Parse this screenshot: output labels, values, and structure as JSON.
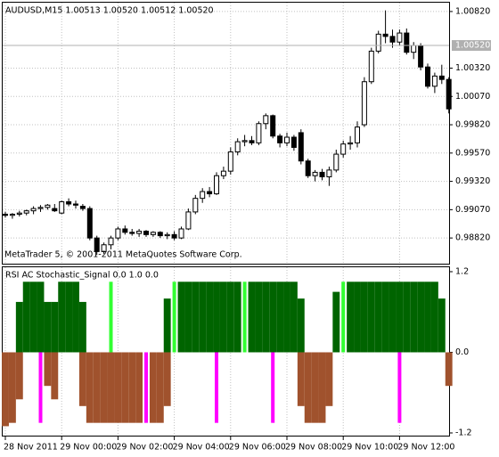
{
  "chart_data": [
    {
      "type": "candlestick",
      "title": "AUDUSD,M15 1.00513 1.00520 1.00512 1.00520",
      "ylim": [
        0.98593,
        1.00898
      ],
      "yticks": [
        {
          "value": 1.0082,
          "label": "1.00820"
        },
        {
          "value": 1.0032,
          "label": "1.00320"
        },
        {
          "value": 1.0007,
          "label": "1.00070"
        },
        {
          "value": 0.9982,
          "label": "0.99820"
        },
        {
          "value": 0.9957,
          "label": "0.99570"
        },
        {
          "value": 0.9932,
          "label": "0.99320"
        },
        {
          "value": 0.9907,
          "label": "0.99070"
        },
        {
          "value": 0.9882,
          "label": "0.98820"
        }
      ],
      "last_price": {
        "value": 1.0052,
        "label": "1.00520"
      },
      "footer": "MetaTrader 5, © 2001-2011 MetaQuotes Software Corp.",
      "up_color": "#ffffff",
      "down_color": "#000000",
      "grid": true,
      "open": [
        0.9903,
        0.9902,
        0.9903,
        0.9904,
        0.9906,
        0.9908,
        0.9909,
        0.9908,
        0.9904,
        0.9914,
        0.9912,
        0.991,
        0.9908,
        0.9882,
        0.987,
        0.9876,
        0.9882,
        0.989,
        0.9887,
        0.9886,
        0.9888,
        0.9885,
        0.9887,
        0.9884,
        0.9885,
        0.9882,
        0.989,
        0.9905,
        0.9917,
        0.9923,
        0.9921,
        0.9937,
        0.9941,
        0.9958,
        0.9967,
        0.9968,
        0.9966,
        0.9983,
        0.999,
        0.9972,
        0.9966,
        0.9971,
        0.9975,
        0.995,
        0.9937,
        0.994,
        0.9936,
        0.9942,
        0.9956,
        0.9965,
        0.9966,
        0.9982,
        1.002,
        1.0047,
        1.0062,
        1.006,
        1.0055,
        1.0063,
        1.0046,
        1.0052,
        1.0033,
        1.0016,
        1.0025,
        1.0022
      ],
      "high": [
        0.9905,
        0.9904,
        0.9906,
        0.9907,
        0.991,
        0.9911,
        0.9912,
        0.9912,
        0.9915,
        0.9917,
        0.9915,
        0.9912,
        0.991,
        0.9884,
        0.9878,
        0.9884,
        0.9892,
        0.9893,
        0.989,
        0.989,
        0.9889,
        0.9888,
        0.9888,
        0.9887,
        0.9888,
        0.9892,
        0.9908,
        0.992,
        0.9926,
        0.9927,
        0.994,
        0.9945,
        0.9962,
        0.997,
        0.9973,
        0.9972,
        0.9985,
        0.9992,
        0.9991,
        0.9974,
        0.9975,
        0.9973,
        0.9978,
        0.9952,
        0.9942,
        0.9943,
        0.9945,
        0.996,
        0.9968,
        0.9972,
        0.9985,
        1.0024,
        1.005,
        1.0065,
        1.0083,
        1.0066,
        1.0066,
        1.0067,
        1.0055,
        1.0054,
        1.0036,
        1.0028,
        1.0035,
        1.0024
      ],
      "low": [
        0.99,
        0.9899,
        0.9901,
        0.9902,
        0.9903,
        0.9905,
        0.9907,
        0.9905,
        0.9903,
        0.991,
        0.9908,
        0.9906,
        0.988,
        0.9867,
        0.9868,
        0.9872,
        0.988,
        0.9885,
        0.9884,
        0.9883,
        0.9883,
        0.9883,
        0.9882,
        0.9881,
        0.988,
        0.9881,
        0.9889,
        0.9903,
        0.9913,
        0.9918,
        0.992,
        0.9934,
        0.9938,
        0.9955,
        0.9963,
        0.9964,
        0.9964,
        0.9978,
        0.997,
        0.9962,
        0.9963,
        0.9959,
        0.9947,
        0.9935,
        0.9932,
        0.9933,
        0.9928,
        0.994,
        0.9953,
        0.996,
        0.9962,
        0.998,
        1.0018,
        1.0045,
        1.0054,
        1.005,
        1.0052,
        1.0044,
        1.004,
        1.003,
        1.0014,
        1.001,
        1.0018,
        0.9992
      ],
      "close": [
        0.9902,
        0.9903,
        0.9904,
        0.9906,
        0.9908,
        0.9909,
        0.9911,
        0.9906,
        0.9914,
        0.9912,
        0.9911,
        0.9908,
        0.9882,
        0.987,
        0.9876,
        0.9882,
        0.989,
        0.9887,
        0.9886,
        0.9888,
        0.9885,
        0.9887,
        0.9884,
        0.9885,
        0.9882,
        0.989,
        0.9905,
        0.9917,
        0.9923,
        0.9921,
        0.9937,
        0.9941,
        0.9958,
        0.9967,
        0.9968,
        0.9966,
        0.9983,
        0.999,
        0.9972,
        0.9966,
        0.9971,
        0.9962,
        0.995,
        0.9937,
        0.994,
        0.9936,
        0.9942,
        0.9956,
        0.9965,
        0.9966,
        0.998,
        1.002,
        1.0047,
        1.0062,
        1.006,
        1.0055,
        1.0063,
        1.0046,
        1.0052,
        1.0033,
        1.0016,
        1.0025,
        1.0022,
        0.9996
      ]
    },
    {
      "type": "histogram-panel",
      "title": "RSI AC Stochastic_Signal 0.0 1.0 0.0",
      "ylim": [
        -1.24,
        1.266
      ],
      "yticks": [
        1.2,
        {
          "value": 0,
          "label": "0.0"
        },
        -1.2
      ],
      "categories": [
        "28 Nov 2011",
        null,
        null,
        null,
        null,
        null,
        null,
        null,
        "29 Nov 00:00",
        null,
        null,
        null,
        null,
        null,
        null,
        null,
        "29 Nov 02:00",
        null,
        null,
        null,
        null,
        null,
        null,
        null,
        "29 Nov 04:00",
        null,
        null,
        null,
        null,
        null,
        null,
        null,
        "29 Nov 06:00",
        null,
        null,
        null,
        null,
        null,
        null,
        null,
        "29 Nov 08:00",
        null,
        null,
        null,
        null,
        null,
        null,
        null,
        "29 Nov 10:00",
        null,
        null,
        null,
        null,
        null,
        null,
        null,
        "29 Nov 12:00",
        null,
        null,
        null,
        null,
        null,
        null,
        null
      ],
      "series": [
        {
          "color": "#006400",
          "values": [
            null,
            null,
            0.75,
            1.05,
            1.05,
            1.05,
            0.75,
            0.75,
            1.05,
            1.05,
            1.05,
            0.75,
            null,
            null,
            null,
            null,
            null,
            null,
            null,
            null,
            null,
            null,
            null,
            0.8,
            null,
            1.05,
            1.05,
            1.05,
            1.05,
            1.05,
            1.05,
            1.05,
            1.05,
            1.05,
            null,
            1.05,
            1.05,
            1.05,
            1.05,
            1.05,
            1.05,
            1.05,
            0.8,
            null,
            null,
            null,
            null,
            0.9,
            null,
            1.05,
            1.05,
            1.05,
            1.05,
            1.05,
            1.05,
            1.05,
            1.05,
            1.05,
            1.05,
            1.05,
            1.05,
            1.05,
            0.8,
            null
          ]
        },
        {
          "color": "#32ff32",
          "values": [
            null,
            null,
            null,
            null,
            null,
            null,
            null,
            null,
            null,
            null,
            null,
            null,
            null,
            null,
            null,
            1.05,
            null,
            null,
            null,
            null,
            null,
            null,
            null,
            null,
            1.05,
            null,
            null,
            null,
            null,
            null,
            null,
            null,
            null,
            null,
            1.05,
            null,
            null,
            null,
            null,
            null,
            null,
            null,
            null,
            null,
            null,
            null,
            null,
            null,
            1.05,
            null,
            null,
            null,
            null,
            null,
            null,
            null,
            null,
            null,
            null,
            null,
            null,
            null,
            null,
            null
          ]
        },
        {
          "color": "#a0522d",
          "values": [
            -1.1,
            -1.05,
            -0.7,
            null,
            null,
            null,
            -0.5,
            -0.7,
            null,
            null,
            null,
            -0.8,
            -1.05,
            -1.05,
            -1.05,
            -1.05,
            -1.05,
            -1.05,
            -1.05,
            -1.05,
            null,
            -1.05,
            -1.05,
            -0.8,
            null,
            null,
            null,
            null,
            null,
            null,
            null,
            null,
            null,
            null,
            null,
            null,
            null,
            null,
            null,
            null,
            null,
            null,
            -0.8,
            -1.05,
            -1.05,
            -1.05,
            -0.8,
            null,
            null,
            null,
            null,
            null,
            null,
            null,
            null,
            null,
            null,
            null,
            null,
            null,
            null,
            null,
            null,
            -0.5
          ]
        },
        {
          "color": "#ff00ff",
          "values": [
            null,
            null,
            null,
            null,
            null,
            -1.05,
            null,
            null,
            null,
            null,
            null,
            null,
            null,
            null,
            null,
            null,
            null,
            null,
            null,
            null,
            -1.05,
            null,
            null,
            null,
            null,
            null,
            null,
            null,
            null,
            null,
            -1.05,
            null,
            null,
            null,
            null,
            null,
            null,
            null,
            -1.05,
            null,
            null,
            null,
            null,
            null,
            null,
            null,
            null,
            null,
            null,
            null,
            null,
            null,
            null,
            null,
            null,
            null,
            -1.05,
            null,
            null,
            null,
            null,
            null,
            null,
            null
          ]
        }
      ]
    }
  ]
}
